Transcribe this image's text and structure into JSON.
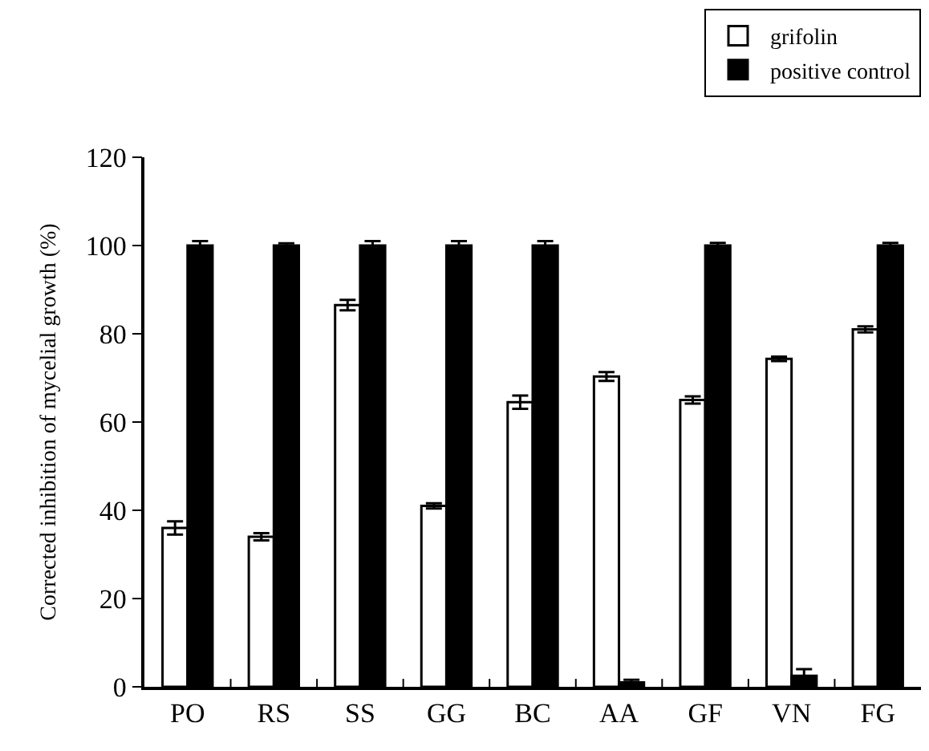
{
  "chart_data": {
    "type": "bar",
    "ylabel": "Corrected inhibition of mycelial growth (%)",
    "categories": [
      "PO",
      "RS",
      "SS",
      "GG",
      "BC",
      "AA",
      "GF",
      "VN",
      "FG"
    ],
    "series": [
      {
        "name": "grifolin",
        "color": "#ffffff",
        "values": [
          36,
          34,
          86.5,
          41,
          64.5,
          70.3,
          65,
          74.3,
          81
        ],
        "errors": [
          1.5,
          0.8,
          1.2,
          0.6,
          1.5,
          1,
          0.8,
          0.5,
          0.7
        ]
      },
      {
        "name": "positive control",
        "color": "#000000",
        "values": [
          100,
          100,
          100,
          100,
          100,
          1,
          100,
          2.5,
          100
        ],
        "errors": [
          1,
          0.5,
          1,
          1,
          1,
          0.6,
          0.6,
          1.5,
          0.6
        ]
      }
    ],
    "ylim": [
      0,
      120
    ],
    "yticks": [
      0,
      20,
      40,
      60,
      80,
      100,
      120
    ],
    "legend": "top right"
  }
}
